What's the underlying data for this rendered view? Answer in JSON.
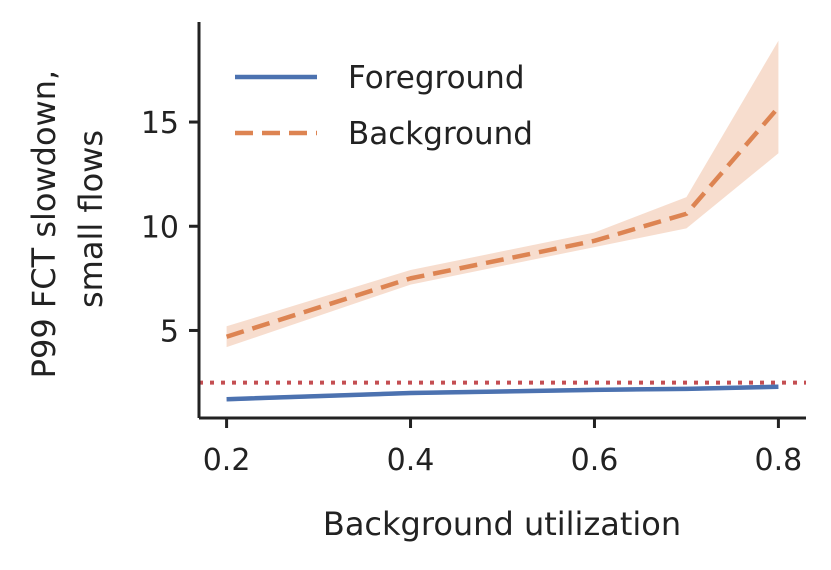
{
  "chart_data": {
    "type": "line",
    "xlabel": "Background utilization",
    "ylabel": [
      "P99 FCT slowdown,",
      "small flows"
    ],
    "xlim": [
      0.17,
      0.83
    ],
    "ylim": [
      0.8,
      19.8
    ],
    "xticks": [
      0.2,
      0.4,
      0.6,
      0.8
    ],
    "xtick_labels": [
      "0.2",
      "0.4",
      "0.6",
      "0.8"
    ],
    "yticks": [
      5,
      10,
      15
    ],
    "ytick_labels": [
      "5",
      "10",
      "15"
    ],
    "grid": false,
    "legend_position": "top-left",
    "x": [
      0.2,
      0.4,
      0.6,
      0.7,
      0.8
    ],
    "series": [
      {
        "name": "Foreground",
        "style": "solid",
        "color": "#4c72b0",
        "values": [
          1.7,
          2.0,
          2.15,
          2.2,
          2.3
        ],
        "lower": [
          1.6,
          1.9,
          2.05,
          2.1,
          2.2
        ],
        "upper": [
          1.8,
          2.1,
          2.25,
          2.3,
          2.4
        ]
      },
      {
        "name": "Background",
        "style": "dashed",
        "color": "#dd8452",
        "band_color": "#f6d7c6",
        "values": [
          4.7,
          7.5,
          9.3,
          10.6,
          15.7
        ],
        "lower": [
          4.2,
          7.2,
          9.0,
          9.9,
          13.5
        ],
        "upper": [
          5.2,
          7.9,
          9.7,
          11.4,
          18.9
        ]
      }
    ],
    "reference_line": {
      "y": 2.5,
      "style": "dotted",
      "color": "#c44e52"
    }
  }
}
